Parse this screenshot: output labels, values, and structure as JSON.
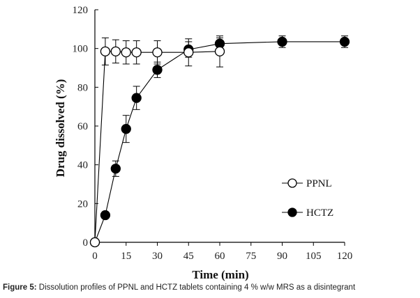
{
  "caption": {
    "label": "Figure 5:",
    "text": " Dissolution profiles of PPNL and HCTZ tablets containing 4 % w/w MRS as a disintegrant"
  },
  "chart_data": {
    "type": "line",
    "xlabel": "Time (min)",
    "ylabel": "Drug dissolved (%)",
    "xlim": [
      0,
      120
    ],
    "ylim": [
      0,
      120
    ],
    "xticks": [
      0,
      15,
      30,
      45,
      60,
      75,
      90,
      105,
      120
    ],
    "yticks": [
      0,
      20,
      40,
      60,
      80,
      100,
      120
    ],
    "grid": false,
    "legend_position": "lower-right",
    "series": [
      {
        "name": "PPNL",
        "marker": "open-circle",
        "x": [
          0,
          5,
          10,
          15,
          20,
          30,
          45,
          60
        ],
        "y": [
          0,
          98.5,
          98.5,
          98,
          98,
          98,
          98,
          98.5
        ],
        "err": [
          0,
          7,
          6,
          6,
          6,
          6,
          7,
          8
        ]
      },
      {
        "name": "HCTZ",
        "marker": "filled-circle",
        "x": [
          0,
          5,
          10,
          15,
          20,
          30,
          45,
          60,
          90,
          120
        ],
        "y": [
          0,
          14,
          38,
          58.5,
          74.5,
          89,
          99.5,
          102.5,
          103.5,
          103.5
        ],
        "err": [
          0,
          1,
          4,
          7,
          6,
          4,
          4,
          3,
          3,
          3
        ]
      }
    ]
  }
}
